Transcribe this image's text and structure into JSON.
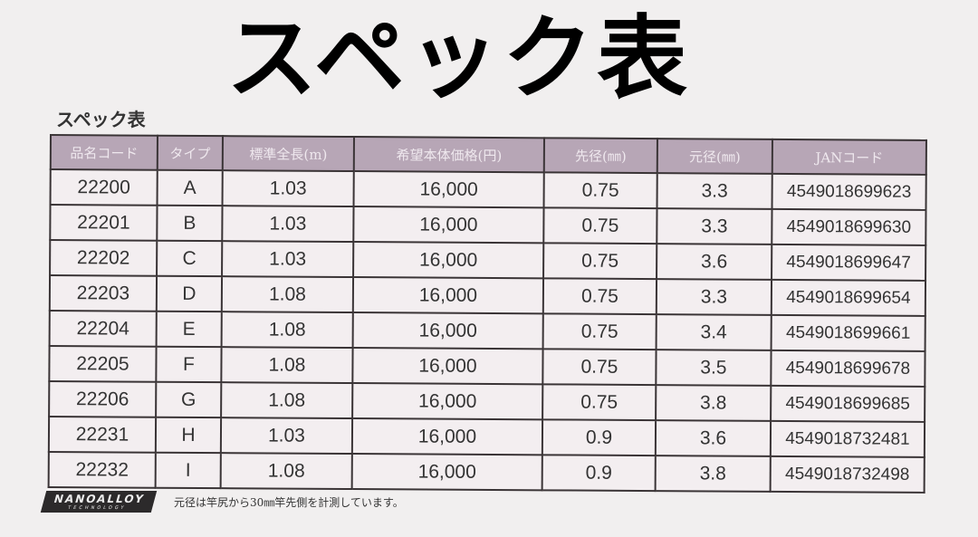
{
  "title": "スペック表",
  "subtitle": "スペック表",
  "table": {
    "headers": [
      "品名コード",
      "タイプ",
      "標準全長(m)",
      "希望本体価格(円)",
      "先径(㎜)",
      "元径(㎜)",
      "JANコード"
    ],
    "rows": [
      [
        "22200",
        "A",
        "1.03",
        "16,000",
        "0.75",
        "3.3",
        "4549018699623"
      ],
      [
        "22201",
        "B",
        "1.03",
        "16,000",
        "0.75",
        "3.3",
        "4549018699630"
      ],
      [
        "22202",
        "C",
        "1.03",
        "16,000",
        "0.75",
        "3.6",
        "4549018699647"
      ],
      [
        "22203",
        "D",
        "1.08",
        "16,000",
        "0.75",
        "3.3",
        "4549018699654"
      ],
      [
        "22204",
        "E",
        "1.08",
        "16,000",
        "0.75",
        "3.4",
        "4549018699661"
      ],
      [
        "22205",
        "F",
        "1.08",
        "16,000",
        "0.75",
        "3.5",
        "4549018699678"
      ],
      [
        "22206",
        "G",
        "1.08",
        "16,000",
        "0.75",
        "3.8",
        "4549018699685"
      ],
      [
        "22231",
        "H",
        "1.03",
        "16,000",
        "0.9",
        "3.6",
        "4549018732481"
      ],
      [
        "22232",
        "I",
        "1.08",
        "16,000",
        "0.9",
        "3.8",
        "4549018732498"
      ]
    ]
  },
  "footer": {
    "logo_text": "NANOALLOY",
    "logo_subtext": "TECHNOLOGY",
    "note": "元径は竿尻から30㎜竿先側を計測しています。"
  }
}
